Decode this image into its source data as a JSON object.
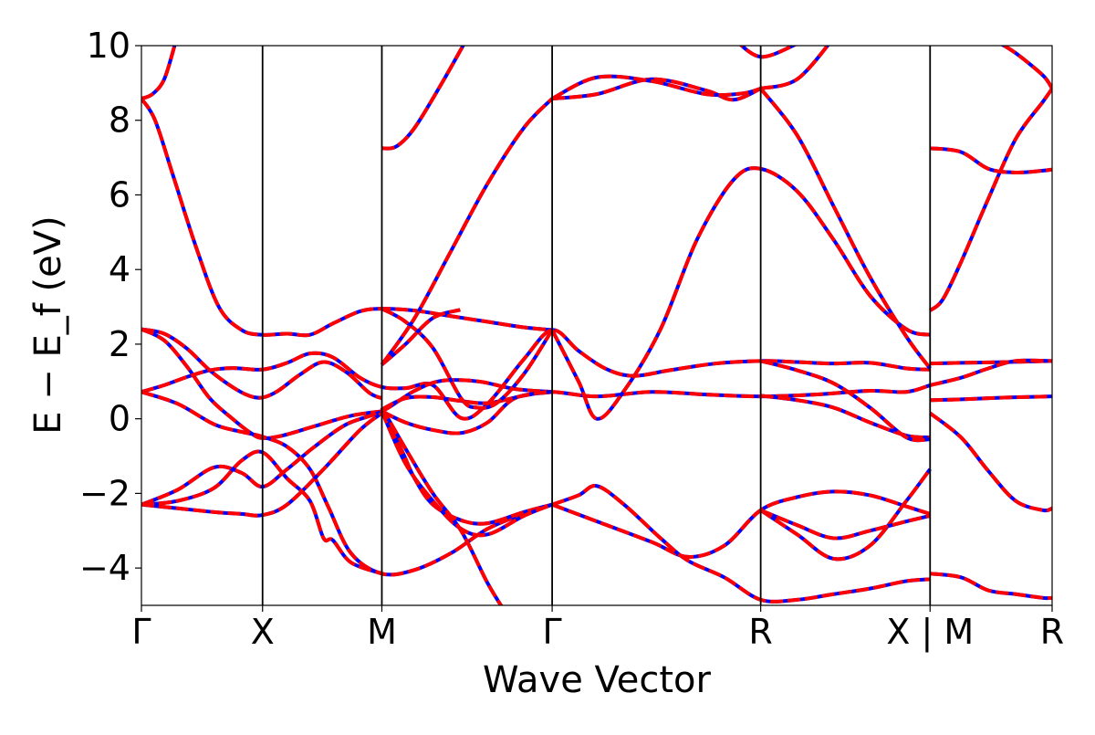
{
  "chart_data": {
    "type": "line",
    "title": "",
    "xlabel": "Wave Vector",
    "ylabel": "E − E_f (eV)",
    "ylim": [
      -5,
      10
    ],
    "y_ticks": [
      -4,
      -2,
      0,
      2,
      4,
      6,
      8,
      10
    ],
    "y_tick_labels": [
      "−4",
      "−2",
      "0",
      "2",
      "4",
      "6",
      "8",
      "10"
    ],
    "x_range": [
      0,
      1000
    ],
    "high_symmetry_points": [
      {
        "label": "Γ",
        "x": 0
      },
      {
        "label": "X",
        "x": 133
      },
      {
        "label": "M",
        "x": 264
      },
      {
        "label": "Γ",
        "x": 451
      },
      {
        "label": "R",
        "x": 680
      },
      {
        "label": "X | M",
        "x": 866
      },
      {
        "label": "R",
        "x": 1000
      }
    ],
    "series_style": [
      {
        "color": "#0000ff",
        "linestyle": "solid"
      },
      {
        "color": "#ff0000",
        "linestyle": "dashed"
      }
    ],
    "bands": [
      [
        [
          0,
          8.58
        ],
        [
          12,
          8.7
        ],
        [
          25,
          9.1
        ],
        [
          37,
          10.05
        ]
      ],
      [
        [
          0,
          8.58
        ],
        [
          15,
          8.0
        ],
        [
          35,
          6.5
        ],
        [
          60,
          4.6
        ],
        [
          85,
          3.0
        ],
        [
          110,
          2.38
        ],
        [
          133,
          2.25
        ],
        [
          160,
          2.28
        ],
        [
          185,
          2.25
        ],
        [
          210,
          2.55
        ],
        [
          240,
          2.88
        ],
        [
          264,
          2.95
        ],
        [
          300,
          2.9
        ],
        [
          340,
          2.75
        ],
        [
          380,
          2.6
        ],
        [
          420,
          2.45
        ],
        [
          451,
          2.38
        ]
      ],
      [
        [
          0,
          2.4
        ],
        [
          25,
          2.28
        ],
        [
          50,
          1.88
        ],
        [
          75,
          1.3
        ],
        [
          100,
          0.85
        ],
        [
          118,
          0.62
        ],
        [
          133,
          0.57
        ],
        [
          150,
          0.75
        ],
        [
          175,
          1.2
        ],
        [
          200,
          1.52
        ],
        [
          225,
          1.25
        ],
        [
          250,
          0.7
        ],
        [
          264,
          0.55
        ]
      ],
      [
        [
          0,
          2.4
        ],
        [
          25,
          2.1
        ],
        [
          50,
          1.4
        ],
        [
          75,
          0.55
        ],
        [
          100,
          0.0
        ],
        [
          120,
          -0.38
        ],
        [
          133,
          -0.52
        ],
        [
          155,
          -0.45
        ],
        [
          190,
          -0.2
        ],
        [
          230,
          0.08
        ],
        [
          264,
          0.2
        ]
      ],
      [
        [
          0,
          0.72
        ],
        [
          25,
          0.9
        ],
        [
          50,
          1.12
        ],
        [
          75,
          1.3
        ],
        [
          100,
          1.36
        ],
        [
          133,
          1.32
        ],
        [
          160,
          1.5
        ],
        [
          185,
          1.75
        ],
        [
          210,
          1.65
        ],
        [
          240,
          1.1
        ],
        [
          264,
          0.85
        ],
        [
          290,
          0.82
        ],
        [
          320,
          0.9
        ],
        [
          351,
          0.02
        ],
        [
          380,
          0.4
        ],
        [
          420,
          1.6
        ],
        [
          451,
          2.38
        ],
        [
          480,
          1.82
        ],
        [
          510,
          1.34
        ],
        [
          540,
          1.15
        ],
        [
          580,
          1.3
        ],
        [
          630,
          1.48
        ],
        [
          680,
          1.55
        ],
        [
          720,
          1.52
        ],
        [
          760,
          1.48
        ],
        [
          800,
          1.5
        ],
        [
          840,
          1.35
        ],
        [
          866,
          1.32
        ]
      ],
      [
        [
          0,
          0.72
        ],
        [
          40,
          0.4
        ],
        [
          80,
          -0.15
        ],
        [
          110,
          -0.35
        ],
        [
          133,
          -0.48
        ],
        [
          160,
          -0.75
        ],
        [
          185,
          -1.35
        ],
        [
          205,
          -2.35
        ],
        [
          230,
          -3.6
        ],
        [
          264,
          -4.15
        ],
        [
          300,
          -4.05
        ],
        [
          340,
          -3.6
        ],
        [
          380,
          -2.95
        ],
        [
          420,
          -2.55
        ],
        [
          451,
          -2.3
        ]
      ],
      [
        [
          0,
          -2.3
        ],
        [
          40,
          -1.9
        ],
        [
          80,
          -1.3
        ],
        [
          110,
          -1.45
        ],
        [
          133,
          -1.82
        ],
        [
          160,
          -1.35
        ],
        [
          190,
          -0.75
        ],
        [
          225,
          -0.15
        ],
        [
          264,
          0.2
        ],
        [
          300,
          0.75
        ],
        [
          330,
          1.02
        ],
        [
          370,
          1.0
        ],
        [
          410,
          0.8
        ],
        [
          451,
          0.72
        ]
      ],
      [
        [
          0,
          -2.3
        ],
        [
          40,
          -2.4
        ],
        [
          80,
          -2.5
        ],
        [
          110,
          -2.55
        ],
        [
          133,
          -2.58
        ],
        [
          160,
          -2.3
        ],
        [
          200,
          -1.35
        ],
        [
          240,
          -0.3
        ],
        [
          264,
          0.15
        ]
      ],
      [
        [
          0,
          -2.3
        ],
        [
          40,
          -2.2
        ],
        [
          80,
          -1.85
        ],
        [
          110,
          -1.12
        ],
        [
          133,
          -0.9
        ],
        [
          160,
          -1.6
        ],
        [
          185,
          -2.2
        ],
        [
          200,
          -3.2
        ],
        [
          210,
          -3.25
        ],
        [
          230,
          -3.85
        ],
        [
          264,
          -4.15
        ]
      ],
      [
        [
          264,
          0.2
        ],
        [
          290,
          -0.1
        ],
        [
          320,
          -0.3
        ],
        [
          351,
          -0.38
        ],
        [
          380,
          -0.1
        ],
        [
          410,
          0.55
        ],
        [
          451,
          0.72
        ]
      ],
      [
        [
          264,
          0.25
        ],
        [
          290,
          0.55
        ],
        [
          320,
          0.58
        ],
        [
          350,
          0.48
        ],
        [
          380,
          0.42
        ],
        [
          420,
          0.62
        ],
        [
          451,
          0.72
        ],
        [
          500,
          0.6
        ],
        [
          560,
          0.72
        ],
        [
          620,
          0.65
        ],
        [
          680,
          0.6
        ],
        [
          740,
          0.65
        ],
        [
          800,
          0.75
        ],
        [
          840,
          0.72
        ],
        [
          866,
          0.9
        ]
      ],
      [
        [
          264,
          2.95
        ],
        [
          290,
          2.6
        ],
        [
          320,
          1.9
        ],
        [
          351,
          0.55
        ],
        [
          368,
          0.3
        ],
        [
          390,
          0.42
        ],
        [
          420,
          1.2
        ],
        [
          451,
          2.38
        ]
      ],
      [
        [
          264,
          1.45
        ],
        [
          290,
          2.0
        ],
        [
          320,
          2.7
        ],
        [
          350,
          2.92
        ]
      ],
      [
        [
          264,
          0.2
        ],
        [
          285,
          -0.8
        ],
        [
          300,
          -1.6
        ],
        [
          320,
          -2.3
        ],
        [
          351,
          -2.72
        ],
        [
          380,
          -2.8
        ],
        [
          420,
          -2.5
        ],
        [
          451,
          -2.3
        ]
      ],
      [
        [
          264,
          0.2
        ],
        [
          290,
          -1.2
        ],
        [
          320,
          -2.2
        ],
        [
          351,
          -2.95
        ],
        [
          380,
          -3.1
        ],
        [
          420,
          -2.6
        ],
        [
          451,
          -2.3
        ]
      ],
      [
        [
          264,
          0.3
        ],
        [
          290,
          -0.8
        ],
        [
          320,
          -2.0
        ],
        [
          351,
          -3.0
        ],
        [
          380,
          -4.4
        ],
        [
          400,
          -5.2
        ]
      ],
      [
        [
          264,
          7.25
        ],
        [
          280,
          7.3
        ],
        [
          300,
          7.8
        ],
        [
          330,
          9.0
        ],
        [
          360,
          10.3
        ]
      ],
      [
        [
          264,
          1.45
        ],
        [
          300,
          2.7
        ],
        [
          340,
          4.5
        ],
        [
          380,
          6.3
        ],
        [
          420,
          7.8
        ],
        [
          451,
          8.58
        ]
      ],
      [
        [
          451,
          8.58
        ],
        [
          500,
          8.7
        ],
        [
          560,
          9.1
        ],
        [
          620,
          8.8
        ],
        [
          650,
          8.55
        ],
        [
          680,
          8.85
        ]
      ],
      [
        [
          451,
          8.58
        ],
        [
          500,
          9.15
        ],
        [
          560,
          9.05
        ],
        [
          620,
          8.7
        ],
        [
          660,
          8.72
        ],
        [
          680,
          8.85
        ]
      ],
      [
        [
          451,
          2.38
        ],
        [
          480,
          1.0
        ],
        [
          500,
          0.0
        ],
        [
          530,
          0.75
        ],
        [
          570,
          2.4
        ],
        [
          610,
          4.8
        ],
        [
          650,
          6.4
        ],
        [
          680,
          6.7
        ],
        [
          720,
          6.1
        ],
        [
          760,
          4.8
        ],
        [
          800,
          3.3
        ],
        [
          840,
          2.4
        ],
        [
          866,
          2.25
        ]
      ],
      [
        [
          680,
          8.85
        ],
        [
          720,
          7.6
        ],
        [
          760,
          5.7
        ],
        [
          800,
          3.8
        ],
        [
          840,
          2.2
        ],
        [
          866,
          1.35
        ]
      ],
      [
        [
          680,
          8.85
        ],
        [
          720,
          9.1
        ],
        [
          760,
          10.2
        ]
      ],
      [
        [
          650,
          10.2
        ],
        [
          680,
          9.7
        ],
        [
          720,
          10.05
        ]
      ],
      [
        [
          680,
          0.62
        ],
        [
          720,
          0.5
        ],
        [
          760,
          0.3
        ],
        [
          800,
          -0.1
        ],
        [
          840,
          -0.45
        ],
        [
          866,
          -0.5
        ]
      ],
      [
        [
          680,
          1.55
        ],
        [
          720,
          1.3
        ],
        [
          760,
          0.95
        ],
        [
          800,
          0.3
        ],
        [
          840,
          -0.5
        ],
        [
          866,
          -0.55
        ]
      ],
      [
        [
          451,
          -2.3
        ],
        [
          500,
          -2.75
        ],
        [
          560,
          -3.3
        ],
        [
          600,
          -3.7
        ],
        [
          640,
          -3.4
        ],
        [
          680,
          -2.45
        ],
        [
          720,
          -2.1
        ],
        [
          760,
          -1.95
        ],
        [
          800,
          -2.05
        ],
        [
          840,
          -2.35
        ],
        [
          866,
          -2.55
        ]
      ],
      [
        [
          451,
          -2.3
        ],
        [
          480,
          -2.05
        ],
        [
          500,
          -1.8
        ],
        [
          530,
          -2.3
        ],
        [
          570,
          -3.2
        ],
        [
          600,
          -3.8
        ],
        [
          640,
          -4.25
        ],
        [
          680,
          -4.85
        ],
        [
          720,
          -4.85
        ],
        [
          760,
          -4.7
        ],
        [
          800,
          -4.55
        ],
        [
          840,
          -4.35
        ],
        [
          866,
          -4.3
        ]
      ],
      [
        [
          680,
          -2.45
        ],
        [
          720,
          -3.1
        ],
        [
          760,
          -3.75
        ],
        [
          800,
          -3.4
        ],
        [
          840,
          -2.2
        ],
        [
          866,
          -1.35
        ]
      ],
      [
        [
          680,
          -2.45
        ],
        [
          720,
          -2.85
        ],
        [
          760,
          -3.2
        ],
        [
          800,
          -3.0
        ],
        [
          840,
          -2.75
        ],
        [
          866,
          -2.6
        ]
      ],
      [
        [
          866,
          2.9
        ],
        [
          880,
          3.2
        ],
        [
          900,
          4.2
        ],
        [
          930,
          5.9
        ],
        [
          960,
          7.5
        ],
        [
          990,
          8.5
        ],
        [
          1000,
          8.85
        ]
      ],
      [
        [
          866,
          7.25
        ],
        [
          900,
          7.15
        ],
        [
          930,
          6.7
        ],
        [
          960,
          6.6
        ],
        [
          990,
          6.65
        ],
        [
          1000,
          6.68
        ]
      ],
      [
        [
          866,
          1.48
        ],
        [
          900,
          1.5
        ],
        [
          950,
          1.52
        ],
        [
          1000,
          1.55
        ]
      ],
      [
        [
          866,
          0.9
        ],
        [
          900,
          1.1
        ],
        [
          930,
          1.35
        ],
        [
          960,
          1.55
        ],
        [
          1000,
          1.55
        ]
      ],
      [
        [
          866,
          0.5
        ],
        [
          900,
          0.52
        ],
        [
          950,
          0.57
        ],
        [
          1000,
          0.6
        ]
      ],
      [
        [
          866,
          0.15
        ],
        [
          900,
          -0.5
        ],
        [
          930,
          -1.4
        ],
        [
          960,
          -2.2
        ],
        [
          990,
          -2.45
        ],
        [
          1000,
          -2.4
        ]
      ],
      [
        [
          866,
          -4.15
        ],
        [
          900,
          -4.25
        ],
        [
          930,
          -4.6
        ],
        [
          960,
          -4.7
        ],
        [
          990,
          -4.8
        ],
        [
          1000,
          -4.8
        ]
      ],
      [
        [
          1000,
          8.85
        ],
        [
          990,
          9.2
        ],
        [
          960,
          9.8
        ],
        [
          940,
          10.1
        ]
      ]
    ]
  }
}
